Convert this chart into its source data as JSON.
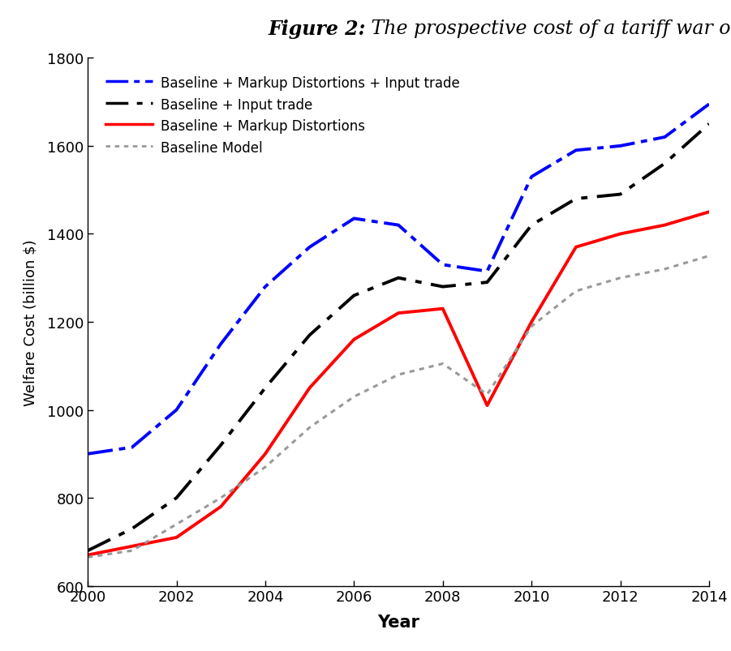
{
  "title_bold": "Figure 2:",
  "title_italic": " The prospective cost of a tariff war over time",
  "xlabel": "Year",
  "ylabel": "Welfare Cost (billion $)",
  "xlim": [
    2000,
    2014
  ],
  "ylim": [
    600,
    1800
  ],
  "yticks": [
    600,
    800,
    1000,
    1200,
    1400,
    1600,
    1800
  ],
  "xticks": [
    2000,
    2002,
    2004,
    2006,
    2008,
    2010,
    2012,
    2014
  ],
  "years": [
    2000,
    2001,
    2002,
    2003,
    2004,
    2005,
    2006,
    2007,
    2008,
    2009,
    2010,
    2011,
    2012,
    2013,
    2014
  ],
  "line_blue": [
    900,
    915,
    1000,
    1150,
    1280,
    1370,
    1435,
    1420,
    1330,
    1315,
    1530,
    1590,
    1600,
    1620,
    1695
  ],
  "line_black": [
    680,
    730,
    800,
    920,
    1050,
    1170,
    1260,
    1300,
    1280,
    1290,
    1420,
    1480,
    1490,
    1560,
    1650
  ],
  "line_red": [
    670,
    690,
    710,
    780,
    900,
    1050,
    1160,
    1220,
    1230,
    1010,
    1200,
    1370,
    1400,
    1420,
    1450
  ],
  "line_gray": [
    665,
    680,
    740,
    800,
    870,
    960,
    1030,
    1080,
    1105,
    1035,
    1190,
    1270,
    1300,
    1320,
    1350
  ],
  "color_blue": "#0000ff",
  "color_black": "#000000",
  "color_red": "#ff0000",
  "color_gray": "#999999",
  "legend_labels": [
    "Baseline + Markup Distortions + Input trade",
    "Baseline + Input trade",
    "Baseline + Markup Distortions",
    "Baseline Model"
  ],
  "bg_color": "#ffffff",
  "linewidth_blue": 2.8,
  "linewidth_black": 2.8,
  "linewidth_red": 2.8,
  "linewidth_gray": 2.2
}
